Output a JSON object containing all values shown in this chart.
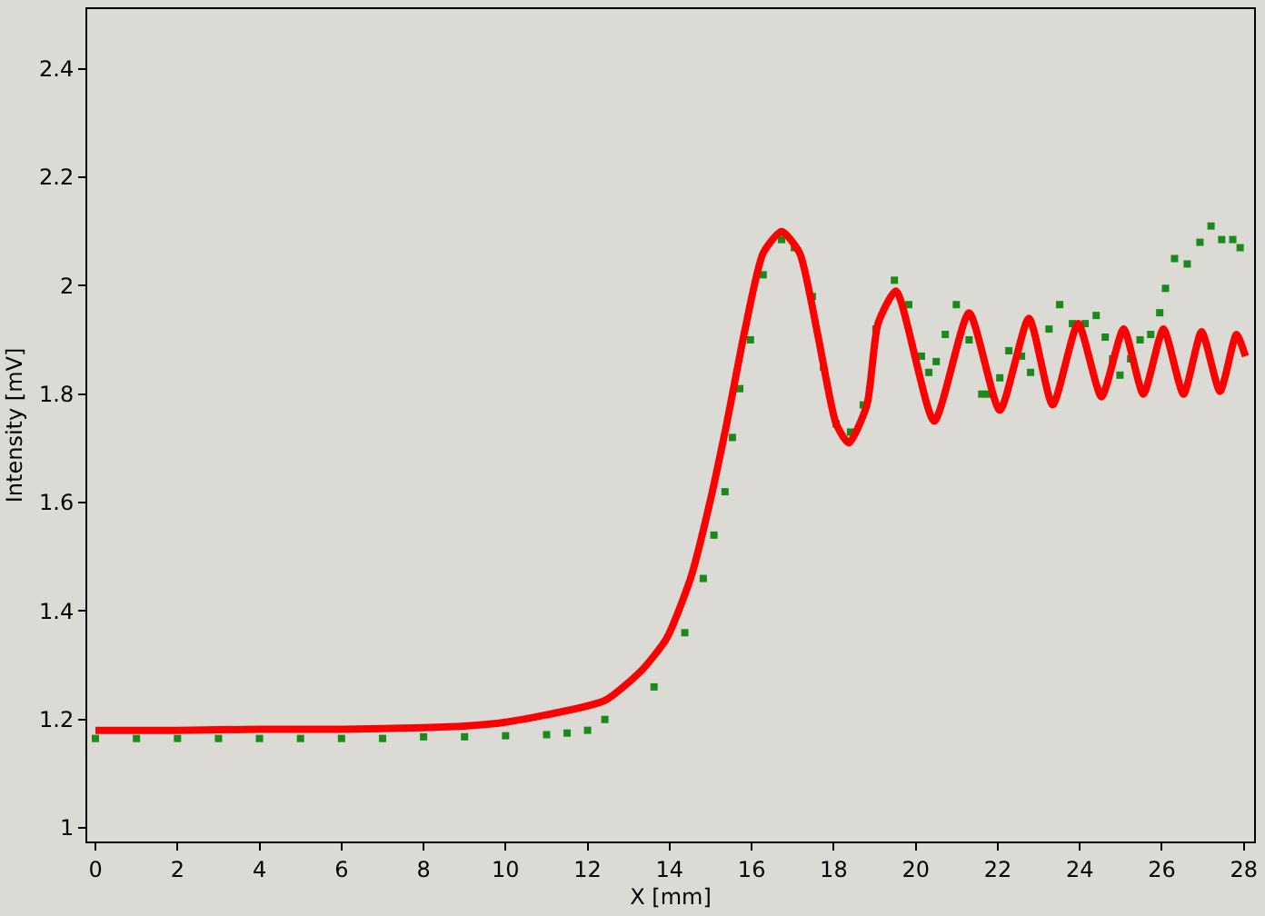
{
  "chart_data": {
    "type": "line",
    "xlabel": "X [mm]",
    "ylabel": "Intensity [mV]",
    "xlim": [
      -0.2,
      28.25
    ],
    "ylim": [
      0.975,
      2.51
    ],
    "xticks": [
      0,
      2,
      4,
      6,
      8,
      10,
      12,
      14,
      16,
      18,
      20,
      22,
      24,
      26,
      28
    ],
    "yticks": [
      1,
      1.2,
      1.4,
      1.6,
      1.8,
      2,
      2.2,
      2.4
    ],
    "grid": false,
    "series": [
      {
        "type": "scatter",
        "marker": "square",
        "color": "#1a8a1a",
        "x": [
          0,
          1,
          2,
          3,
          4,
          5,
          6,
          7,
          8,
          9,
          10,
          11,
          11.5,
          12,
          12.42,
          13.62,
          14.37,
          14.82,
          15.08,
          15.35,
          15.53,
          15.71,
          15.97,
          16.28,
          16.73,
          17.04,
          17.48,
          17.75,
          18.06,
          18.41,
          18.72,
          19.03,
          19.48,
          19.83,
          20.14,
          20.32,
          20.5,
          20.72,
          20.99,
          21.3,
          21.61,
          21.78,
          22.05,
          22.27,
          22.58,
          22.8,
          23.25,
          23.51,
          23.82,
          24.13,
          24.4,
          24.62,
          24.8,
          24.98,
          25.24,
          25.47,
          25.73,
          25.95,
          26.09,
          26.31,
          26.62,
          26.93,
          27.2,
          27.46,
          27.73,
          27.91
        ],
        "values": [
          1.165,
          1.165,
          1.165,
          1.165,
          1.165,
          1.165,
          1.165,
          1.165,
          1.168,
          1.168,
          1.17,
          1.172,
          1.175,
          1.18,
          1.2,
          1.26,
          1.36,
          1.46,
          1.54,
          1.62,
          1.72,
          1.81,
          1.9,
          2.02,
          2.085,
          2.07,
          1.98,
          1.85,
          1.745,
          1.73,
          1.78,
          1.92,
          2.01,
          1.965,
          1.87,
          1.84,
          1.86,
          1.91,
          1.965,
          1.9,
          1.8,
          1.8,
          1.83,
          1.88,
          1.87,
          1.84,
          1.92,
          1.965,
          1.93,
          1.93,
          1.945,
          1.905,
          1.865,
          1.835,
          1.865,
          1.9,
          1.91,
          1.95,
          1.995,
          2.05,
          2.04,
          2.08,
          2.11,
          2.085,
          2.085,
          2.07
        ]
      },
      {
        "type": "line",
        "color": "#ff0000",
        "x": [
          0,
          2,
          4,
          6,
          8,
          9,
          10,
          10.96,
          12.42,
          13.31,
          13.93,
          14.51,
          14.95,
          15.39,
          15.84,
          16.28,
          16.73,
          17.17,
          17.61,
          18.06,
          18.37,
          18.81,
          19.08,
          19.52,
          20.45,
          21.3,
          22.05,
          22.76,
          23.34,
          23.96,
          24.53,
          25.07,
          25.55,
          26.04,
          26.53,
          26.97,
          27.42,
          27.82,
          28.04
        ],
        "values": [
          1.18,
          1.18,
          1.182,
          1.182,
          1.185,
          1.188,
          1.195,
          1.208,
          1.235,
          1.29,
          1.35,
          1.46,
          1.59,
          1.745,
          1.92,
          2.06,
          2.1,
          2.06,
          1.91,
          1.745,
          1.71,
          1.78,
          1.93,
          1.99,
          1.75,
          1.95,
          1.77,
          1.94,
          1.78,
          1.93,
          1.795,
          1.92,
          1.8,
          1.92,
          1.8,
          1.915,
          1.805,
          1.91,
          1.87
        ]
      }
    ]
  }
}
